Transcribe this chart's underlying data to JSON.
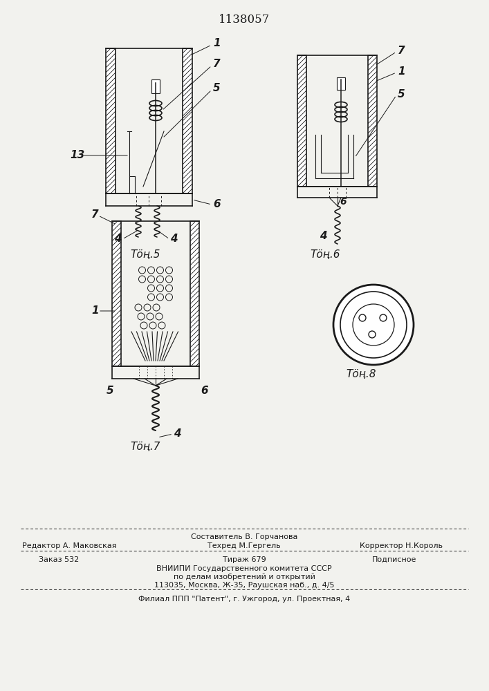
{
  "title": "1138057",
  "bg_color": "#f2f2ee",
  "line_color": "#1a1a1a",
  "fig5_label": "Τӧң.5",
  "fig6_label": "Τӧң.6",
  "fig7_label": "Τӧң.7",
  "fig8_label": "Τӧң.8",
  "footer_sostavitel": "Составитель В. Горчанова",
  "footer_redaktor": "Редактор А. Маковская",
  "footer_tehred": "Техред М.Гергель",
  "footer_korrektor": "Корректор Н.Король",
  "footer_zakaz": "Заказ 532",
  "footer_tirazh": "Тираж 679",
  "footer_podpisnoe": "Подписное",
  "footer_vniiipi": "ВНИИПИ Государственного комитета СССР",
  "footer_po_delam": "по делам изобретений и открытий",
  "footer_address": "113035, Москва, Ж-35, Раушская наб., д. 4/5",
  "footer_filial": "Филиал ППП \"Патент\", г. Ужгород, ул. Проектная, 4"
}
